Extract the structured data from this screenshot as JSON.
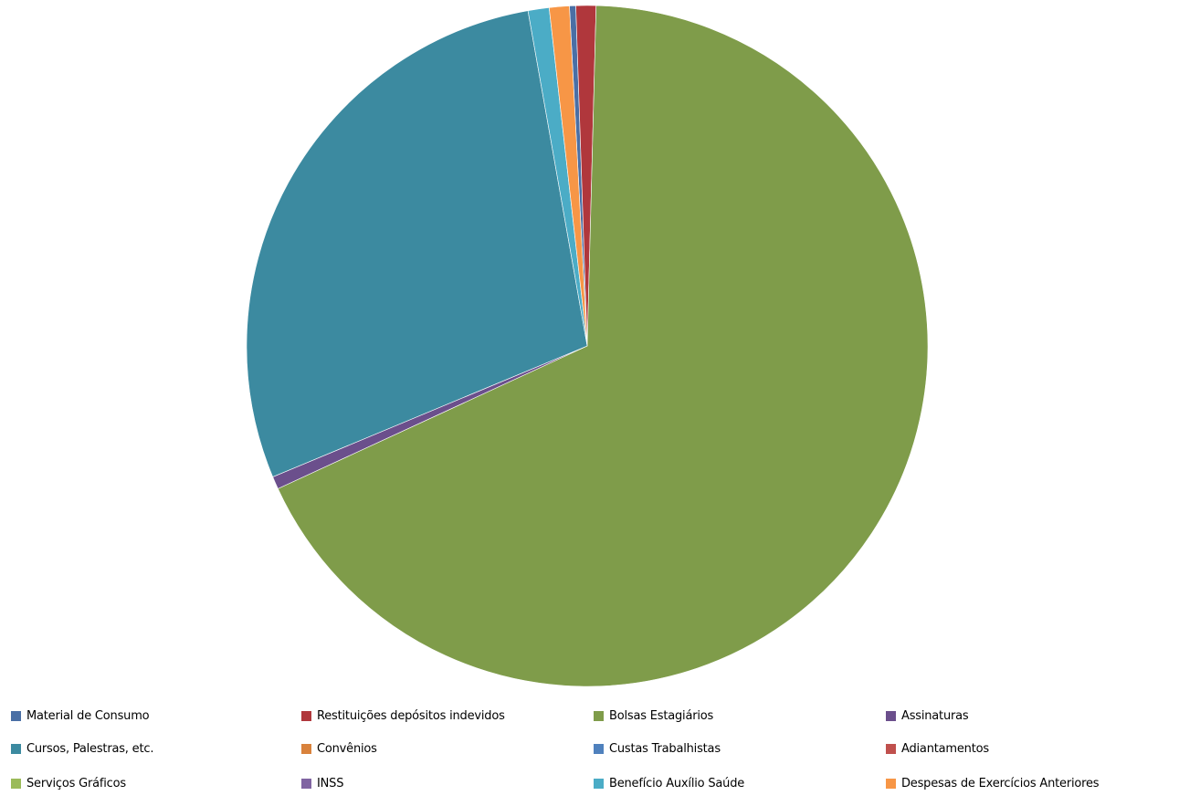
{
  "chart_data": {
    "type": "pie",
    "legend_position": "bottom",
    "start_angle_deg": -3.0,
    "direction": "clockwise",
    "slices": [
      {
        "name": "Material de Consumo",
        "value": 0.3,
        "color": "#4A6FA5"
      },
      {
        "name": "Restituições depósitos indevidos",
        "value": 0.95,
        "color": "#B0373C"
      },
      {
        "name": "Bolsas Estagiários",
        "value": 67.7,
        "color": "#7F9C4A"
      },
      {
        "name": "Assinaturas",
        "value": 0.6,
        "color": "#6B4F8C"
      },
      {
        "name": "Cursos, Palestras, etc.",
        "value": 28.5,
        "color": "#3C8AA0"
      },
      {
        "name": "Convênios",
        "value": 0.0,
        "color": "#D9823C"
      },
      {
        "name": "Custas Trabalhistas",
        "value": 0.0,
        "color": "#4F81BD"
      },
      {
        "name": "Adiantamentos",
        "value": 0.0,
        "color": "#C0504D"
      },
      {
        "name": "Serviços Gráficos",
        "value": 0.0,
        "color": "#9BBB59"
      },
      {
        "name": "INSS",
        "value": 0.0,
        "color": "#8064A2"
      },
      {
        "name": "Benefício Auxílio Saúde",
        "value": 1.0,
        "color": "#4BACC6"
      },
      {
        "name": "Despesas de Exercícios Anteriores",
        "value": 0.95,
        "color": "#F79646"
      }
    ]
  }
}
